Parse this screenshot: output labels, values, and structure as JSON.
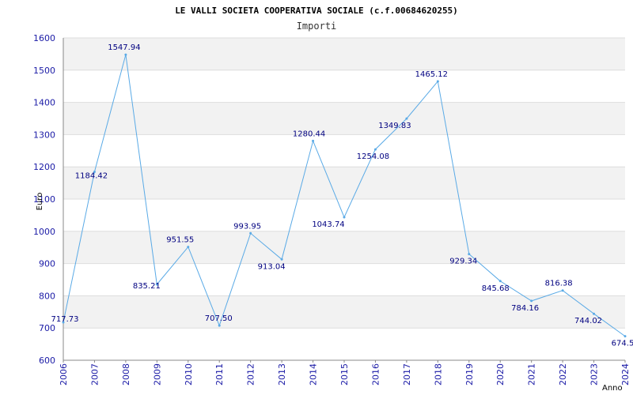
{
  "chart_data": {
    "type": "line",
    "title": "LE VALLI SOCIETA COOPERATIVA SOCIALE (c.f.00684620255)",
    "subtitle": "Importi",
    "xlabel": "Anno",
    "ylabel": "Euro",
    "ylim": [
      600,
      1600
    ],
    "yticks": [
      600,
      700,
      800,
      900,
      1000,
      1100,
      1200,
      1300,
      1400,
      1500,
      1600
    ],
    "grid": true,
    "categories": [
      "2006",
      "2007",
      "2008",
      "2009",
      "2010",
      "2011",
      "2012",
      "2013",
      "2014",
      "2015",
      "2016",
      "2017",
      "2018",
      "2019",
      "2020",
      "2021",
      "2022",
      "2023",
      "2024"
    ],
    "values": [
      717.73,
      1184.42,
      1547.94,
      835.21,
      951.55,
      707.5,
      993.95,
      913.04,
      1280.44,
      1043.74,
      1254.08,
      1349.83,
      1465.12,
      929.34,
      845.68,
      784.16,
      816.38,
      744.02,
      674.5
    ],
    "data_labels": [
      "717.73",
      "1184.42",
      "1547.94",
      "835.21",
      "951.55",
      "707.50",
      "993.95",
      "913.04",
      "1280.44",
      "1043.74",
      "1254.08",
      "1349.83",
      "1465.12",
      "929.34",
      "845.68",
      "784.16",
      "816.38",
      "744.02",
      "674.5"
    ],
    "colors": {
      "line": "#5aaae6",
      "band": "#f2f2f2",
      "grid": "#dddddd",
      "axis": "#888888",
      "tick_text": "#1a1aa6",
      "label_text": "#000080"
    }
  }
}
